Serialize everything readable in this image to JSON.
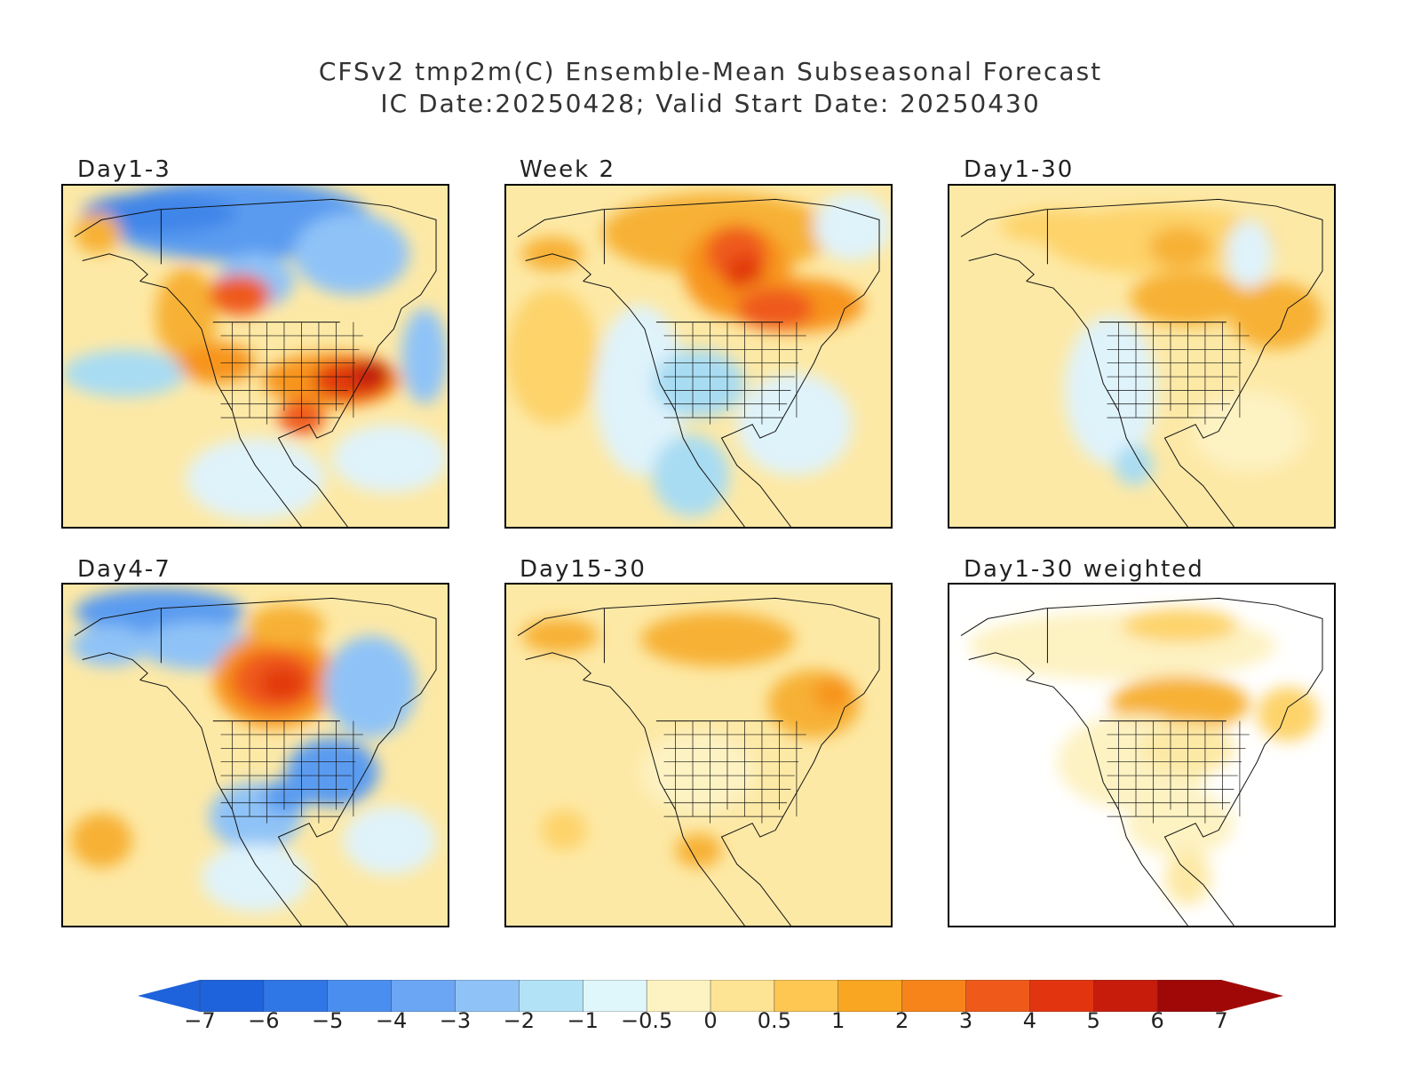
{
  "header": {
    "title": "CFSv2 tmp2m(C) Ensemble-Mean Subseasonal Forecast",
    "subtitle": "IC Date:20250428; Valid Start Date: 20250430"
  },
  "panels": [
    {
      "label": "Day1-3",
      "background": "#fde9a6",
      "blobs": [
        {
          "u": 0.45,
          "v": 0.1,
          "rx": 0.35,
          "ry": 0.12,
          "c": "#5a9bf0"
        },
        {
          "u": 0.25,
          "v": 0.08,
          "rx": 0.2,
          "ry": 0.06,
          "c": "#3f85e8"
        },
        {
          "u": 0.75,
          "v": 0.2,
          "rx": 0.15,
          "ry": 0.12,
          "c": "#8fc3f7"
        },
        {
          "u": 0.5,
          "v": 0.28,
          "rx": 0.1,
          "ry": 0.08,
          "c": "#8fc3f7"
        },
        {
          "u": 0.09,
          "v": 0.14,
          "rx": 0.06,
          "ry": 0.06,
          "c": "#f7b135"
        },
        {
          "u": 0.16,
          "v": 0.55,
          "rx": 0.16,
          "ry": 0.07,
          "c": "#a8dcf3"
        },
        {
          "u": 0.94,
          "v": 0.5,
          "rx": 0.06,
          "ry": 0.14,
          "c": "#8fc3f7"
        },
        {
          "u": 0.32,
          "v": 0.38,
          "rx": 0.08,
          "ry": 0.14,
          "c": "#f7b135"
        },
        {
          "u": 0.46,
          "v": 0.32,
          "rx": 0.08,
          "ry": 0.06,
          "c": "#ef5a1a"
        },
        {
          "u": 0.4,
          "v": 0.52,
          "rx": 0.1,
          "ry": 0.06,
          "c": "#f7941d"
        },
        {
          "u": 0.7,
          "v": 0.57,
          "rx": 0.18,
          "ry": 0.08,
          "c": "#f7941d"
        },
        {
          "u": 0.75,
          "v": 0.57,
          "rx": 0.1,
          "ry": 0.06,
          "c": "#e23a10"
        },
        {
          "u": 0.8,
          "v": 0.55,
          "rx": 0.05,
          "ry": 0.04,
          "c": "#c01a0d"
        },
        {
          "u": 0.62,
          "v": 0.68,
          "rx": 0.06,
          "ry": 0.05,
          "c": "#ef5a1a"
        },
        {
          "u": 0.5,
          "v": 0.86,
          "rx": 0.18,
          "ry": 0.12,
          "c": "#dff3fb"
        },
        {
          "u": 0.85,
          "v": 0.8,
          "rx": 0.15,
          "ry": 0.1,
          "c": "#dff3fb"
        }
      ]
    },
    {
      "label": "Week 2",
      "background": "#fde9a6",
      "blobs": [
        {
          "u": 0.55,
          "v": 0.14,
          "rx": 0.3,
          "ry": 0.12,
          "c": "#f7b135"
        },
        {
          "u": 0.6,
          "v": 0.25,
          "rx": 0.14,
          "ry": 0.14,
          "c": "#f7941d"
        },
        {
          "u": 0.6,
          "v": 0.2,
          "rx": 0.08,
          "ry": 0.08,
          "c": "#ef5a1a"
        },
        {
          "u": 0.62,
          "v": 0.26,
          "rx": 0.05,
          "ry": 0.06,
          "c": "#e23a10"
        },
        {
          "u": 0.75,
          "v": 0.35,
          "rx": 0.18,
          "ry": 0.08,
          "c": "#f7941d"
        },
        {
          "u": 0.7,
          "v": 0.36,
          "rx": 0.1,
          "ry": 0.06,
          "c": "#ef5a1a"
        },
        {
          "u": 0.12,
          "v": 0.2,
          "rx": 0.08,
          "ry": 0.05,
          "c": "#f7b135"
        },
        {
          "u": 0.12,
          "v": 0.5,
          "rx": 0.12,
          "ry": 0.2,
          "c": "#fdd36b"
        },
        {
          "u": 0.35,
          "v": 0.6,
          "rx": 0.12,
          "ry": 0.25,
          "c": "#dff3fb"
        },
        {
          "u": 0.5,
          "v": 0.58,
          "rx": 0.12,
          "ry": 0.1,
          "c": "#a8dcf3"
        },
        {
          "u": 0.48,
          "v": 0.85,
          "rx": 0.1,
          "ry": 0.12,
          "c": "#a8dcf3"
        },
        {
          "u": 0.75,
          "v": 0.7,
          "rx": 0.15,
          "ry": 0.15,
          "c": "#dff3fb"
        },
        {
          "u": 0.9,
          "v": 0.12,
          "rx": 0.1,
          "ry": 0.1,
          "c": "#dff3fb"
        }
      ]
    },
    {
      "label": "Day1-30",
      "background": "#fde9a6",
      "blobs": [
        {
          "u": 0.55,
          "v": 0.16,
          "rx": 0.3,
          "ry": 0.1,
          "c": "#fdd36b"
        },
        {
          "u": 0.6,
          "v": 0.18,
          "rx": 0.08,
          "ry": 0.06,
          "c": "#f7b135"
        },
        {
          "u": 0.62,
          "v": 0.33,
          "rx": 0.15,
          "ry": 0.08,
          "c": "#f7b135"
        },
        {
          "u": 0.85,
          "v": 0.38,
          "rx": 0.12,
          "ry": 0.1,
          "c": "#f7b135"
        },
        {
          "u": 0.28,
          "v": 0.12,
          "rx": 0.15,
          "ry": 0.05,
          "c": "#fdd36b"
        },
        {
          "u": 0.42,
          "v": 0.6,
          "rx": 0.12,
          "ry": 0.22,
          "c": "#dff3fb"
        },
        {
          "u": 0.48,
          "v": 0.82,
          "rx": 0.05,
          "ry": 0.06,
          "c": "#a8dcf3"
        },
        {
          "u": 0.78,
          "v": 0.72,
          "rx": 0.15,
          "ry": 0.12,
          "c": "#fdf2c2"
        },
        {
          "u": 0.78,
          "v": 0.2,
          "rx": 0.06,
          "ry": 0.1,
          "c": "#dff3fb"
        }
      ]
    },
    {
      "label": "Day4-7",
      "background": "#fde9a6",
      "blobs": [
        {
          "u": 0.25,
          "v": 0.08,
          "rx": 0.22,
          "ry": 0.07,
          "c": "#5a9bf0"
        },
        {
          "u": 0.12,
          "v": 0.18,
          "rx": 0.1,
          "ry": 0.06,
          "c": "#8fc3f7"
        },
        {
          "u": 0.35,
          "v": 0.18,
          "rx": 0.15,
          "ry": 0.07,
          "c": "#8fc3f7"
        },
        {
          "u": 0.55,
          "v": 0.28,
          "rx": 0.16,
          "ry": 0.14,
          "c": "#f7941d"
        },
        {
          "u": 0.55,
          "v": 0.28,
          "rx": 0.11,
          "ry": 0.09,
          "c": "#ef5a1a"
        },
        {
          "u": 0.57,
          "v": 0.29,
          "rx": 0.06,
          "ry": 0.05,
          "c": "#e23a10"
        },
        {
          "u": 0.58,
          "v": 0.12,
          "rx": 0.1,
          "ry": 0.06,
          "c": "#f7b135"
        },
        {
          "u": 0.8,
          "v": 0.3,
          "rx": 0.12,
          "ry": 0.15,
          "c": "#8fc3f7"
        },
        {
          "u": 0.7,
          "v": 0.55,
          "rx": 0.12,
          "ry": 0.1,
          "c": "#5a9bf0"
        },
        {
          "u": 0.5,
          "v": 0.68,
          "rx": 0.12,
          "ry": 0.1,
          "c": "#8fc3f7"
        },
        {
          "u": 0.58,
          "v": 0.62,
          "rx": 0.06,
          "ry": 0.05,
          "c": "#5a9bf0"
        },
        {
          "u": 0.1,
          "v": 0.75,
          "rx": 0.08,
          "ry": 0.08,
          "c": "#f7b135"
        },
        {
          "u": 0.5,
          "v": 0.86,
          "rx": 0.14,
          "ry": 0.1,
          "c": "#dff3fb"
        },
        {
          "u": 0.85,
          "v": 0.75,
          "rx": 0.12,
          "ry": 0.1,
          "c": "#dff3fb"
        }
      ]
    },
    {
      "label": "Day15-30",
      "background": "#fde9a6",
      "blobs": [
        {
          "u": 0.14,
          "v": 0.15,
          "rx": 0.1,
          "ry": 0.05,
          "c": "#f7b135"
        },
        {
          "u": 0.55,
          "v": 0.16,
          "rx": 0.2,
          "ry": 0.08,
          "c": "#f7b135"
        },
        {
          "u": 0.8,
          "v": 0.35,
          "rx": 0.12,
          "ry": 0.1,
          "c": "#f7b135"
        },
        {
          "u": 0.85,
          "v": 0.32,
          "rx": 0.05,
          "ry": 0.05,
          "c": "#f7941d"
        },
        {
          "u": 0.15,
          "v": 0.72,
          "rx": 0.06,
          "ry": 0.06,
          "c": "#fdd36b"
        },
        {
          "u": 0.5,
          "v": 0.78,
          "rx": 0.06,
          "ry": 0.05,
          "c": "#f7b135"
        },
        {
          "u": 0.5,
          "v": 0.55,
          "rx": 0.15,
          "ry": 0.12,
          "c": "#fdf2c2"
        }
      ]
    },
    {
      "label": "Day1-30 weighted",
      "background": "#ffffff",
      "blobs": [
        {
          "u": 0.45,
          "v": 0.18,
          "rx": 0.4,
          "ry": 0.1,
          "c": "#fdf2c2"
        },
        {
          "u": 0.6,
          "v": 0.12,
          "rx": 0.15,
          "ry": 0.05,
          "c": "#fdd36b"
        },
        {
          "u": 0.6,
          "v": 0.35,
          "rx": 0.18,
          "ry": 0.08,
          "c": "#f7b135"
        },
        {
          "u": 0.48,
          "v": 0.52,
          "rx": 0.2,
          "ry": 0.14,
          "c": "#fdf2c2"
        },
        {
          "u": 0.62,
          "v": 0.48,
          "rx": 0.12,
          "ry": 0.08,
          "c": "#fde9a6"
        },
        {
          "u": 0.88,
          "v": 0.38,
          "rx": 0.08,
          "ry": 0.08,
          "c": "#fdd36b"
        },
        {
          "u": 0.6,
          "v": 0.7,
          "rx": 0.14,
          "ry": 0.1,
          "c": "#fdf2c2"
        },
        {
          "u": 0.62,
          "v": 0.86,
          "rx": 0.06,
          "ry": 0.08,
          "c": "#fde9a6"
        }
      ]
    }
  ],
  "colorbar": {
    "ticks": [
      "-7",
      "-6",
      "-5",
      "-4",
      "-3",
      "-2",
      "-1",
      "-0.5",
      "0",
      "0.5",
      "1",
      "2",
      "3",
      "4",
      "5",
      "6",
      "7"
    ],
    "colors": [
      "#1e62dc",
      "#2f76e6",
      "#4a8ef0",
      "#6ba6f5",
      "#8fc3f7",
      "#b2e2f6",
      "#dff7fb",
      "#fdf2c2",
      "#fde394",
      "#fdc752",
      "#f9a622",
      "#f7841a",
      "#ef5a1a",
      "#e2350f",
      "#c71b0c",
      "#a00808"
    ],
    "low_arrow": "#1e62dc",
    "high_arrow": "#a00808"
  }
}
